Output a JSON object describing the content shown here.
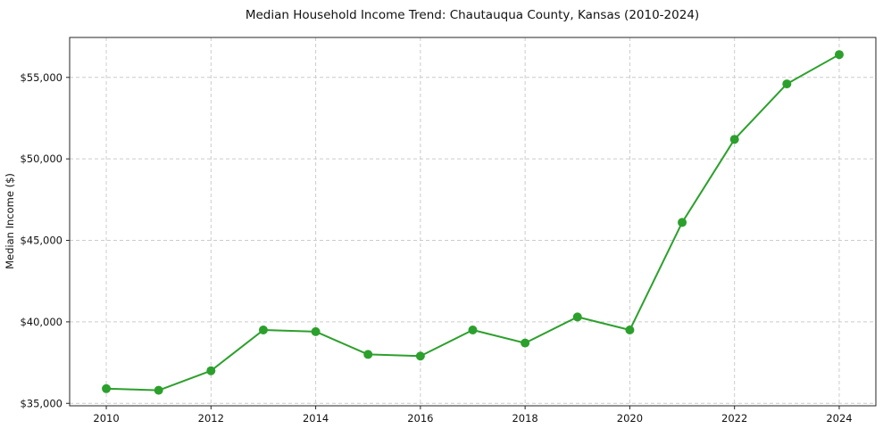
{
  "chart_data": {
    "type": "line",
    "title": "Median Household Income Trend: Chautauqua County, Kansas (2010-2024)",
    "xlabel": "",
    "ylabel": "Median Income ($)",
    "x": [
      2010,
      2011,
      2012,
      2013,
      2014,
      2015,
      2016,
      2017,
      2018,
      2019,
      2020,
      2021,
      2022,
      2023,
      2024
    ],
    "y": [
      35900,
      35800,
      37000,
      39500,
      39400,
      38000,
      37900,
      39500,
      38700,
      40300,
      39500,
      46100,
      51200,
      54600,
      56400
    ],
    "xlim": [
      2009.3,
      2024.7
    ],
    "ylim": [
      34850,
      57450
    ],
    "x_ticks": [
      2010,
      2012,
      2014,
      2016,
      2018,
      2020,
      2022,
      2024
    ],
    "x_tick_labels": [
      "2010",
      "2012",
      "2014",
      "2016",
      "2018",
      "2020",
      "2022",
      "2024"
    ],
    "y_ticks": [
      35000,
      40000,
      45000,
      50000,
      55000
    ],
    "y_tick_labels": [
      "$35,000",
      "$40,000",
      "$45,000",
      "$50,000",
      "$55,000"
    ],
    "grid": true,
    "grid_style": "dashed",
    "legend": "none",
    "line_color": "#2ca02c",
    "marker": "circle",
    "background_color": "#ffffff",
    "grid_color": "#cccccc",
    "spine_color": "#262626"
  }
}
